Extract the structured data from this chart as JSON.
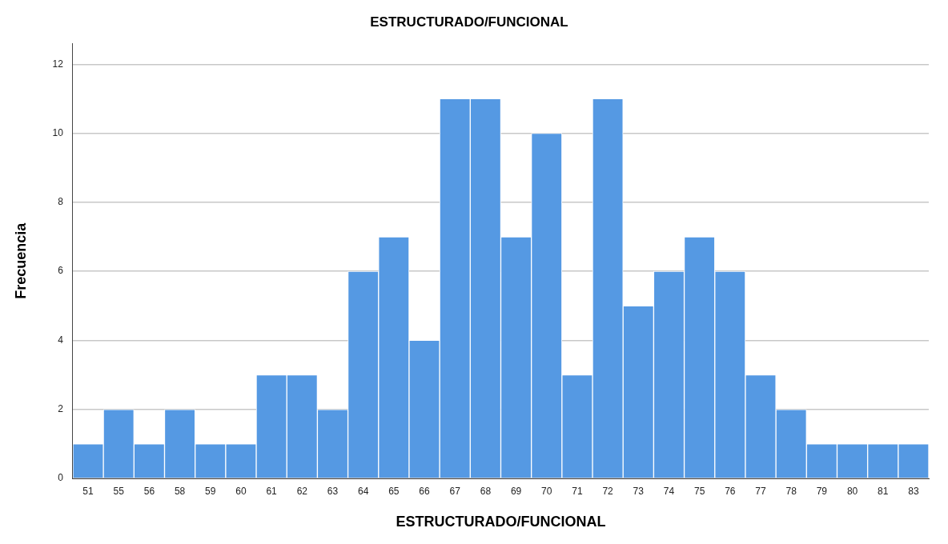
{
  "chart_data": {
    "type": "bar",
    "title": "ESTRUCTURADO/FUNCIONAL",
    "xlabel": "ESTRUCTURADO/FUNCIONAL",
    "ylabel": "Frecuencia",
    "categories": [
      "51",
      "55",
      "56",
      "58",
      "59",
      "60",
      "61",
      "62",
      "63",
      "64",
      "65",
      "66",
      "67",
      "68",
      "69",
      "70",
      "71",
      "72",
      "73",
      "74",
      "75",
      "76",
      "77",
      "78",
      "79",
      "80",
      "81",
      "83"
    ],
    "values": [
      1,
      2,
      1,
      2,
      1,
      1,
      3,
      3,
      2,
      6,
      7,
      4,
      11,
      11,
      7,
      10,
      3,
      11,
      5,
      6,
      7,
      6,
      3,
      2,
      1,
      1,
      1,
      1
    ],
    "color": "#5599e3",
    "ylim": [
      0,
      12.6
    ],
    "yticks": [
      0,
      2,
      4,
      6,
      8,
      10,
      12
    ],
    "grid": "y",
    "legend": false
  }
}
